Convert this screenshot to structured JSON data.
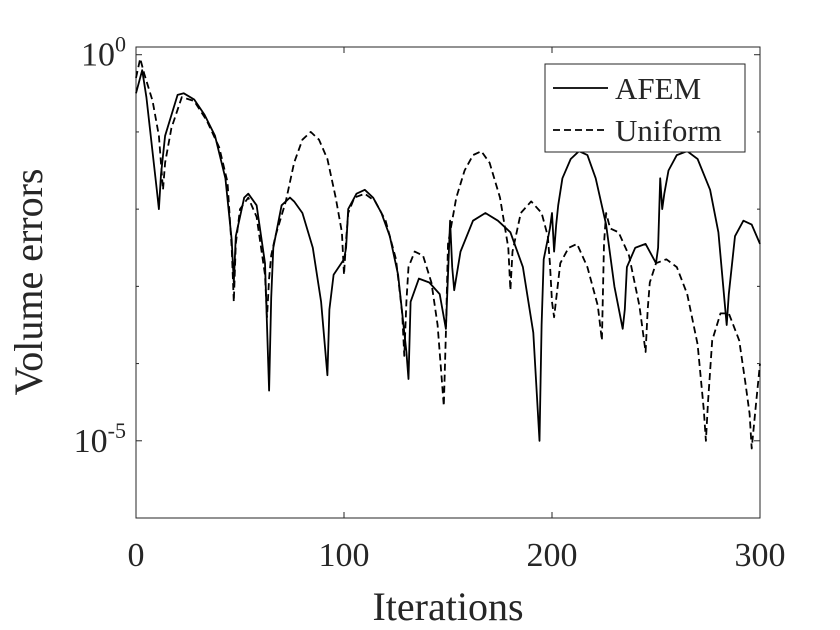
{
  "chart_data": {
    "type": "line",
    "title": "",
    "xlabel": "Iterations",
    "ylabel": "Volume errors",
    "xlim": [
      0,
      300
    ],
    "ylim_log10": [
      -6,
      0.1
    ],
    "y_scale": "log",
    "grid": false,
    "legend_position": "top-right",
    "x_ticks": [
      {
        "value": 0,
        "label": "0"
      },
      {
        "value": 100,
        "label": "100"
      },
      {
        "value": 200,
        "label": "200"
      },
      {
        "value": 300,
        "label": "300"
      }
    ],
    "y_ticks": [
      {
        "value": -5,
        "base": "10",
        "exp": "-5"
      },
      {
        "value": 0,
        "base": "10",
        "exp": "0"
      }
    ],
    "y_minor_ticks": [
      -4,
      -3,
      -2,
      -1
    ],
    "series": [
      {
        "name": "AFEM",
        "style": "solid",
        "color": "#000000",
        "x": [
          0,
          3,
          5,
          10,
          11,
          12,
          14,
          20,
          23,
          28,
          33,
          38,
          43,
          46,
          47,
          48,
          52,
          54,
          58,
          62,
          64,
          65,
          66,
          70,
          74,
          76,
          80,
          85,
          89,
          92,
          93,
          95,
          100,
          101,
          102,
          106,
          110,
          114,
          118,
          122,
          126,
          130,
          131,
          132,
          136,
          141,
          146,
          149,
          150,
          151,
          152,
          153,
          156,
          162,
          168,
          174,
          180,
          186,
          191,
          194,
          195,
          196,
          199,
          200,
          201,
          202,
          203,
          205,
          209,
          213,
          217,
          221,
          226,
          230,
          234,
          235,
          236,
          240,
          245,
          250,
          251,
          252,
          253,
          254,
          256,
          260,
          265,
          270,
          276,
          280,
          283,
          284,
          285,
          288,
          292,
          296,
          300
        ],
        "y": [
          -0.5,
          -0.2,
          -0.55,
          -1.75,
          -2.0,
          -1.55,
          -1.05,
          -0.52,
          -0.5,
          -0.58,
          -0.78,
          -1.05,
          -1.6,
          -2.4,
          -2.95,
          -2.35,
          -1.85,
          -1.8,
          -1.95,
          -2.7,
          -4.35,
          -3.15,
          -2.5,
          -1.95,
          -1.85,
          -1.9,
          -2.05,
          -2.5,
          -3.2,
          -4.15,
          -3.3,
          -2.85,
          -2.65,
          -2.5,
          -2.0,
          -1.8,
          -1.75,
          -1.85,
          -2.05,
          -2.35,
          -2.85,
          -3.85,
          -4.2,
          -3.2,
          -2.9,
          -2.95,
          -3.1,
          -3.55,
          -2.85,
          -2.15,
          -2.75,
          -3.05,
          -2.55,
          -2.15,
          -2.05,
          -2.15,
          -2.3,
          -2.75,
          -3.6,
          -5.0,
          -3.5,
          -2.65,
          -2.25,
          -2.05,
          -2.55,
          -2.2,
          -1.95,
          -1.6,
          -1.35,
          -1.25,
          -1.3,
          -1.6,
          -2.2,
          -3.0,
          -3.55,
          -3.3,
          -2.75,
          -2.5,
          -2.45,
          -2.7,
          -2.5,
          -1.6,
          -2.0,
          -1.8,
          -1.5,
          -1.3,
          -1.25,
          -1.35,
          -1.75,
          -2.3,
          -3.2,
          -3.5,
          -3.1,
          -2.35,
          -2.15,
          -2.2,
          -2.45
        ]
      },
      {
        "name": "Uniform",
        "style": "dashed",
        "color": "#000000",
        "x": [
          0,
          2,
          4,
          8,
          11,
          13,
          14,
          17,
          22,
          28,
          34,
          40,
          44,
          46,
          47,
          48,
          50,
          54,
          58,
          62,
          63,
          64,
          65,
          67,
          72,
          76,
          80,
          84,
          88,
          92,
          96,
          99,
          100,
          101,
          102,
          105,
          110,
          115,
          120,
          125,
          128,
          129,
          130,
          131,
          134,
          138,
          142,
          145,
          148,
          149,
          150,
          154,
          158,
          162,
          166,
          170,
          175,
          179,
          180,
          181,
          185,
          190,
          195,
          198,
          199,
          200,
          201,
          204,
          208,
          212,
          217,
          222,
          224,
          225,
          226,
          228,
          232,
          237,
          242,
          245,
          246,
          247,
          250,
          255,
          260,
          265,
          270,
          273,
          274,
          275,
          277,
          281,
          285,
          290,
          293,
          295,
          296,
          298,
          300
        ],
        "y": [
          -0.3,
          -0.05,
          -0.25,
          -0.6,
          -1.05,
          -1.75,
          -1.4,
          -0.95,
          -0.55,
          -0.6,
          -0.85,
          -1.2,
          -1.65,
          -2.5,
          -3.2,
          -2.45,
          -2.0,
          -1.85,
          -2.1,
          -2.85,
          -3.4,
          -2.9,
          -2.6,
          -2.35,
          -1.9,
          -1.4,
          -1.1,
          -1.0,
          -1.1,
          -1.35,
          -1.85,
          -2.3,
          -2.85,
          -2.4,
          -2.05,
          -1.85,
          -1.8,
          -1.9,
          -2.15,
          -2.65,
          -3.35,
          -3.9,
          -3.2,
          -2.75,
          -2.55,
          -2.6,
          -2.95,
          -3.5,
          -4.55,
          -3.6,
          -2.45,
          -1.85,
          -1.5,
          -1.3,
          -1.25,
          -1.4,
          -1.85,
          -2.5,
          -3.05,
          -2.55,
          -2.05,
          -1.9,
          -2.05,
          -2.35,
          -2.7,
          -3.2,
          -3.4,
          -2.7,
          -2.5,
          -2.45,
          -2.75,
          -3.25,
          -3.7,
          -2.45,
          -2.05,
          -2.25,
          -2.3,
          -2.6,
          -3.25,
          -3.85,
          -3.3,
          -2.95,
          -2.7,
          -2.65,
          -2.75,
          -3.1,
          -3.75,
          -4.6,
          -5.0,
          -4.5,
          -3.7,
          -3.35,
          -3.35,
          -3.7,
          -4.25,
          -4.65,
          -5.1,
          -4.55,
          -4.0
        ]
      }
    ]
  }
}
